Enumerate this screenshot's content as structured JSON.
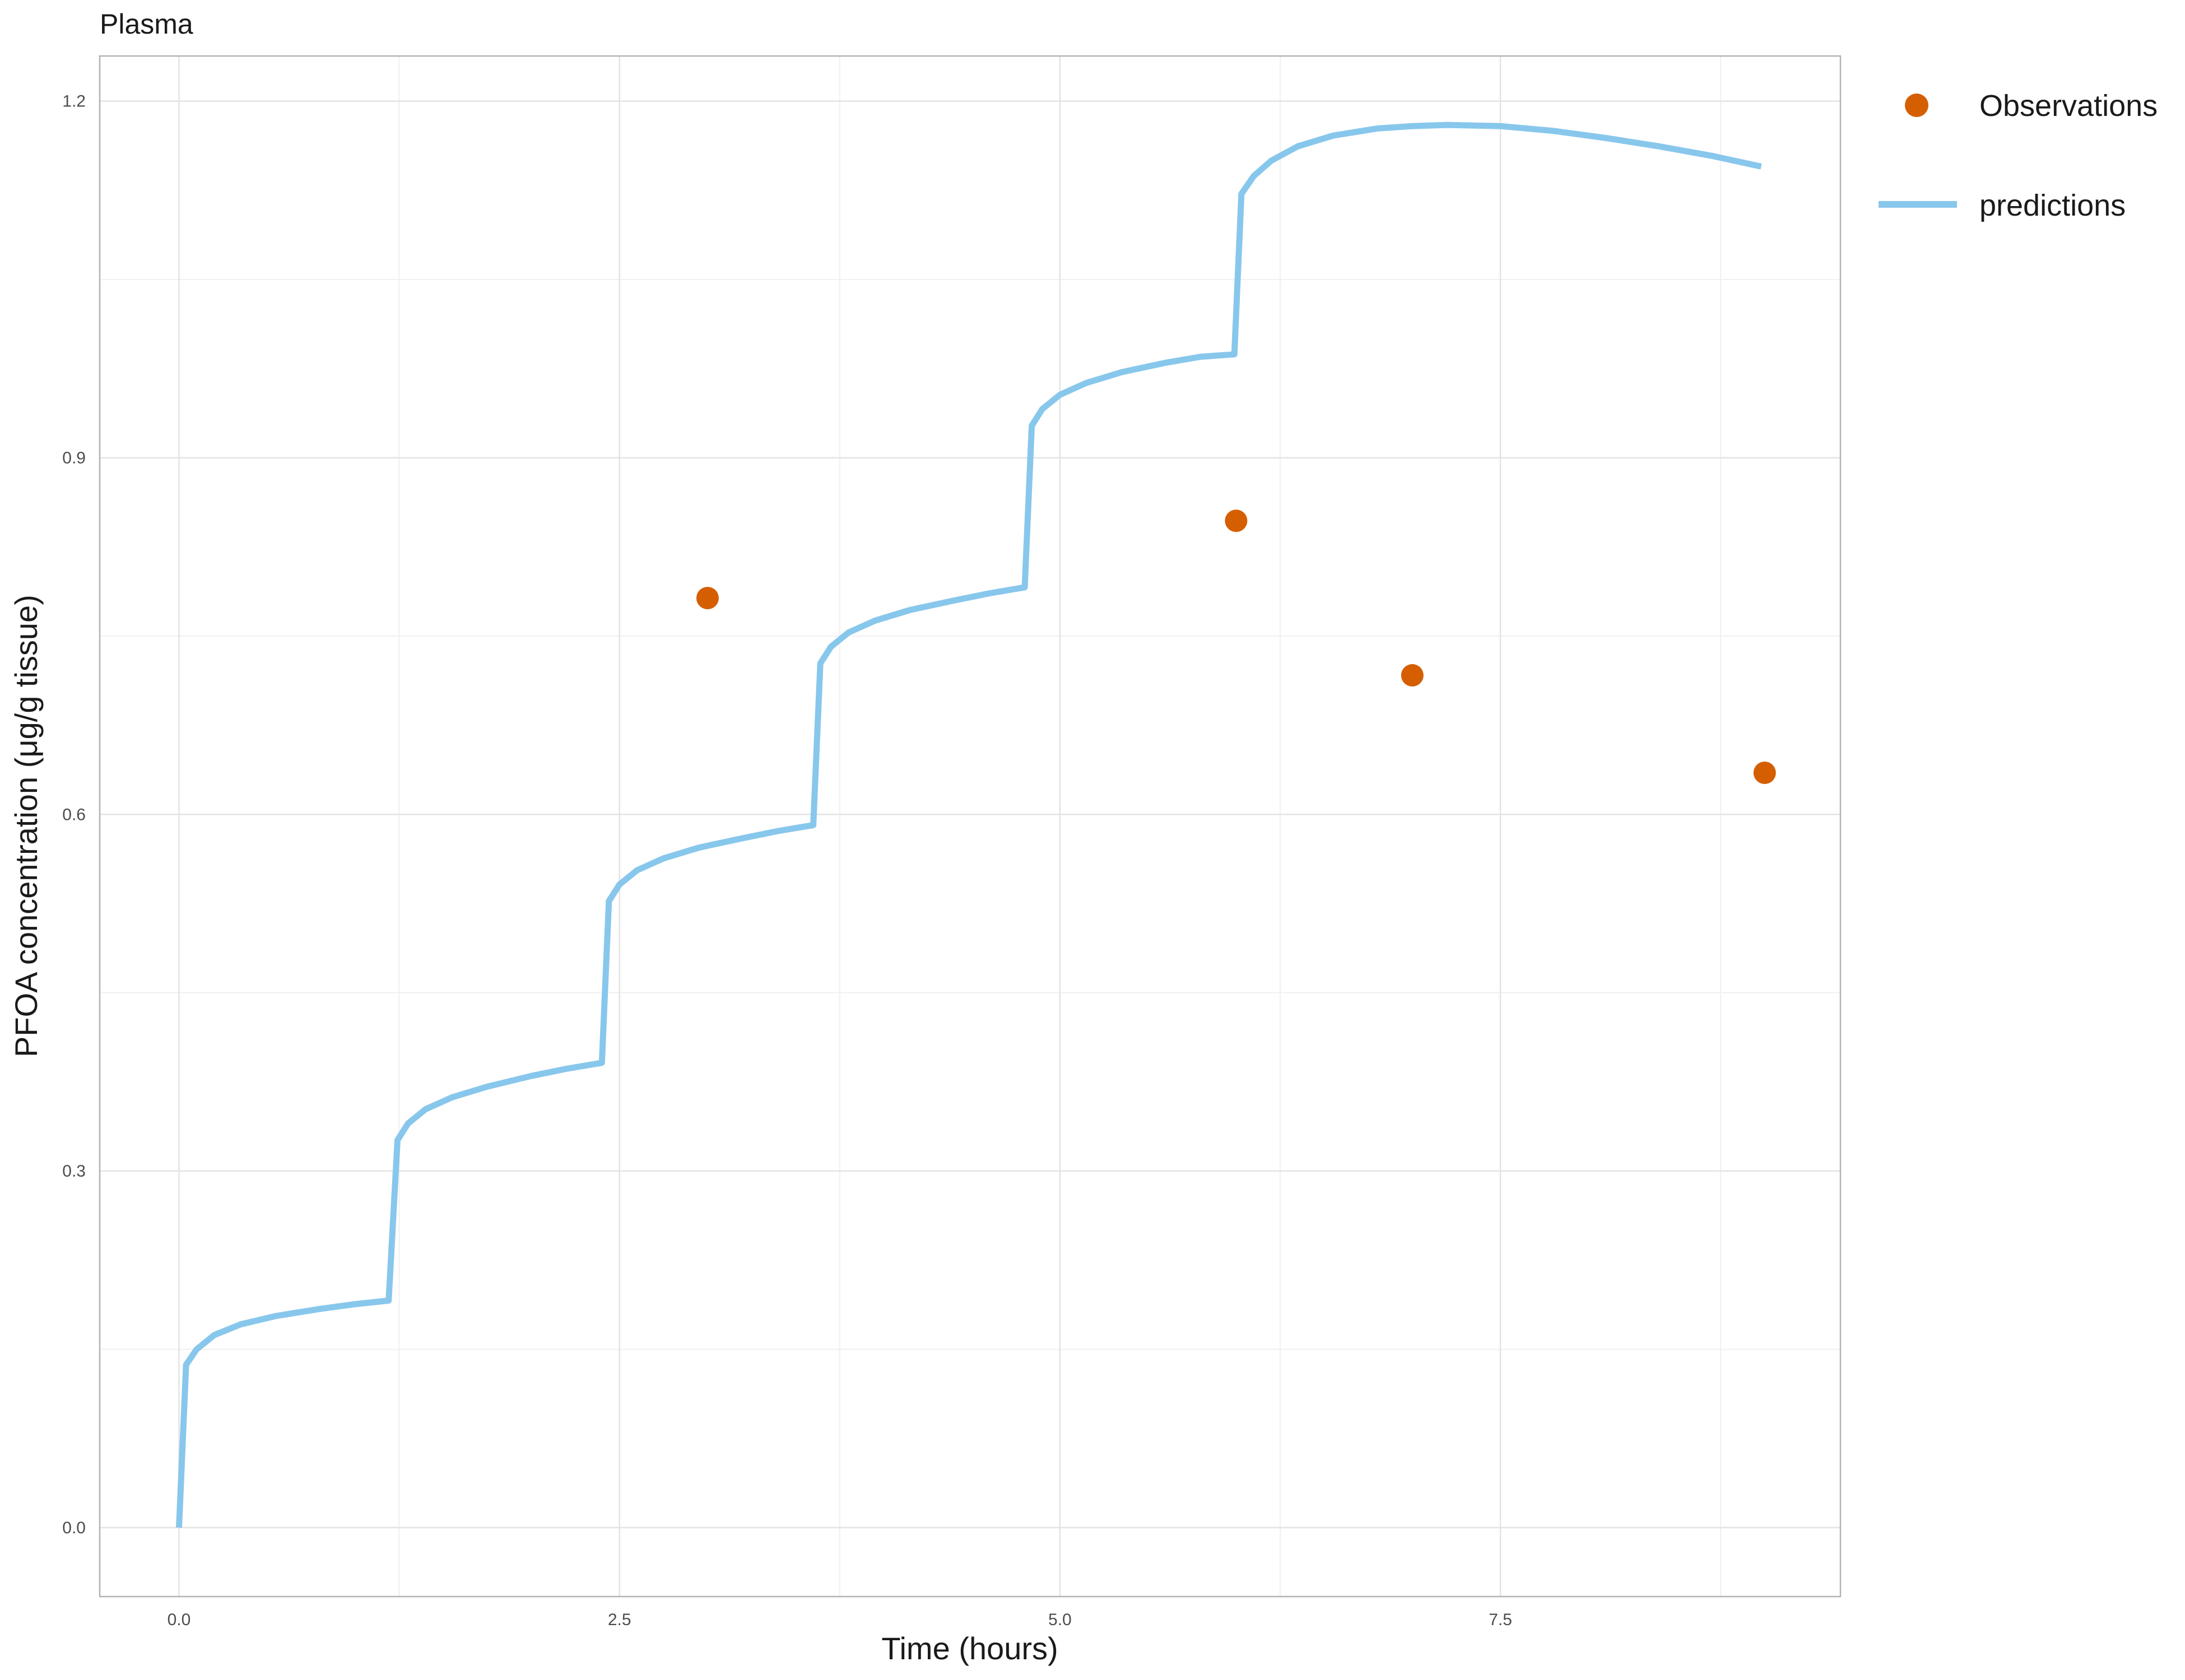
{
  "chart_data": {
    "type": "line",
    "title": "Plasma",
    "xlabel": "Time (hours)",
    "ylabel": "PFOA concentration (μg/g tissue)",
    "xlim": [
      -0.45,
      9.43
    ],
    "ylim": [
      -0.058,
      1.238
    ],
    "x_ticks": [
      0.0,
      2.5,
      5.0,
      7.5
    ],
    "x_tick_labels": [
      "0.0",
      "2.5",
      "5.0",
      "7.5"
    ],
    "y_ticks": [
      0.0,
      0.3,
      0.6,
      0.9,
      1.2
    ],
    "y_tick_labels": [
      "0.0",
      "0.3",
      "0.6",
      "0.9",
      "1.2"
    ],
    "grid": true,
    "legend_position": "right",
    "series": [
      {
        "name": "Observations",
        "kind": "points",
        "color": "#D55E00",
        "x": [
          3.0,
          6.0,
          7.0,
          9.0
        ],
        "y": [
          0.782,
          0.847,
          0.717,
          0.635
        ]
      },
      {
        "name": "predictions",
        "kind": "line",
        "color": "#88C7EC",
        "x": [
          0.0,
          0.04,
          0.1,
          0.2,
          0.35,
          0.55,
          0.8,
          1.0,
          1.19,
          1.24,
          1.3,
          1.4,
          1.55,
          1.75,
          2.0,
          2.2,
          2.4,
          2.44,
          2.5,
          2.6,
          2.75,
          2.95,
          3.2,
          3.4,
          3.6,
          3.64,
          3.7,
          3.8,
          3.95,
          4.15,
          4.4,
          4.6,
          4.8,
          4.84,
          4.9,
          5.0,
          5.15,
          5.35,
          5.6,
          5.8,
          5.99,
          6.03,
          6.1,
          6.2,
          6.35,
          6.55,
          6.8,
          7.0,
          7.2,
          7.5,
          7.8,
          8.1,
          8.4,
          8.7,
          8.98
        ],
        "y": [
          0.0,
          0.137,
          0.15,
          0.162,
          0.171,
          0.178,
          0.184,
          0.188,
          0.191,
          0.326,
          0.34,
          0.352,
          0.362,
          0.371,
          0.38,
          0.386,
          0.391,
          0.527,
          0.541,
          0.553,
          0.563,
          0.572,
          0.58,
          0.586,
          0.591,
          0.727,
          0.741,
          0.753,
          0.763,
          0.772,
          0.78,
          0.786,
          0.791,
          0.927,
          0.941,
          0.953,
          0.963,
          0.972,
          0.98,
          0.985,
          0.987,
          1.122,
          1.137,
          1.15,
          1.162,
          1.171,
          1.177,
          1.179,
          1.18,
          1.179,
          1.175,
          1.169,
          1.162,
          1.154,
          1.145
        ]
      }
    ]
  }
}
